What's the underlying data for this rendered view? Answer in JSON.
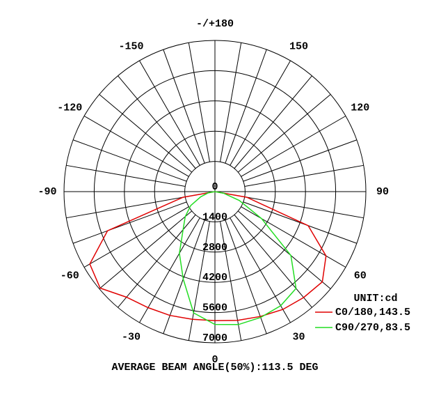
{
  "chart_data": {
    "type": "polar",
    "footer": "AVERAGE BEAM ANGLE(50%):113.5 DEG",
    "unit_label": "UNIT:cd",
    "rlim": [
      0,
      7000
    ],
    "rticks": [
      0,
      1400,
      2800,
      4200,
      5600,
      7000
    ],
    "thetaticks": [
      0,
      30,
      60,
      90,
      120,
      150,
      {
        "value": 180,
        "label": "-/+180"
      },
      -150,
      -120,
      -90,
      -60,
      -30
    ],
    "series": [
      {
        "name": "C0/180,143.5",
        "color": "#e00000",
        "theta": [
          -90,
          -80,
          -70,
          -60,
          -50,
          -40,
          -30,
          -20,
          -10,
          0,
          10,
          20,
          30,
          40,
          50,
          60,
          70,
          80,
          90
        ],
        "r": [
          0,
          1500,
          5300,
          6700,
          6950,
          6380,
          6200,
          6100,
          6000,
          5970,
          6050,
          6150,
          6300,
          6400,
          6500,
          5950,
          4600,
          1500,
          0
        ]
      },
      {
        "name": "C90/270,83.5",
        "color": "#22dd22",
        "theta": [
          -90,
          -80,
          -70,
          -60,
          -50,
          -40,
          -30,
          -20,
          -10,
          0,
          10,
          20,
          30,
          40,
          50,
          60,
          70,
          80,
          90
        ],
        "r": [
          0,
          300,
          700,
          1300,
          1800,
          2300,
          3300,
          4300,
          5700,
          6150,
          6250,
          6200,
          6100,
          5850,
          4600,
          2500,
          1200,
          400,
          0
        ]
      }
    ]
  }
}
